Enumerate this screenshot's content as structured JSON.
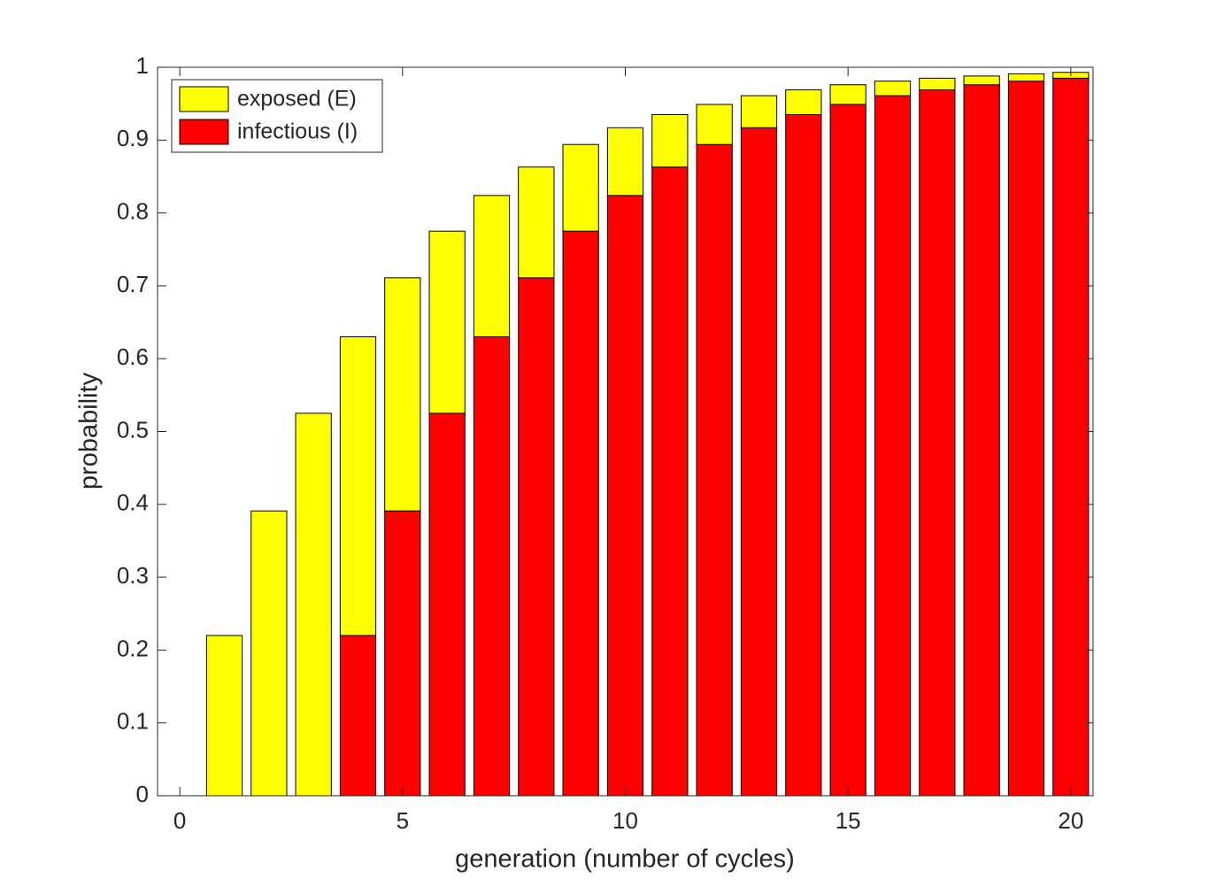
{
  "chart_data": {
    "type": "stacked_bar",
    "x": [
      1,
      2,
      3,
      4,
      5,
      6,
      7,
      8,
      9,
      10,
      11,
      12,
      13,
      14,
      15,
      16,
      17,
      18,
      19,
      20
    ],
    "series": [
      {
        "name": "exposed (E)",
        "color": "#ffff00",
        "values": [
          0.22,
          0.391,
          0.525,
          0.41,
          0.32,
          0.25,
          0.194,
          0.152,
          0.119,
          0.093,
          0.072,
          0.055,
          0.044,
          0.034,
          0.027,
          0.02,
          0.016,
          0.012,
          0.01,
          0.008
        ]
      },
      {
        "name": "infectious (I)",
        "color": "#ff0000",
        "values": [
          0,
          0,
          0,
          0.22,
          0.391,
          0.525,
          0.63,
          0.711,
          0.775,
          0.824,
          0.863,
          0.894,
          0.917,
          0.935,
          0.949,
          0.961,
          0.969,
          0.976,
          0.981,
          0.985
        ]
      }
    ],
    "xlabel": "generation (number of cycles)",
    "ylabel": "probability",
    "xlim": [
      -0.5,
      20.5
    ],
    "xticks": [
      0,
      5,
      10,
      15,
      20
    ],
    "ylim": [
      0,
      1
    ],
    "yticks": [
      0,
      0.1,
      0.2,
      0.3,
      0.4,
      0.5,
      0.6,
      0.7,
      0.8,
      0.9,
      1
    ],
    "legend": "top-left"
  }
}
